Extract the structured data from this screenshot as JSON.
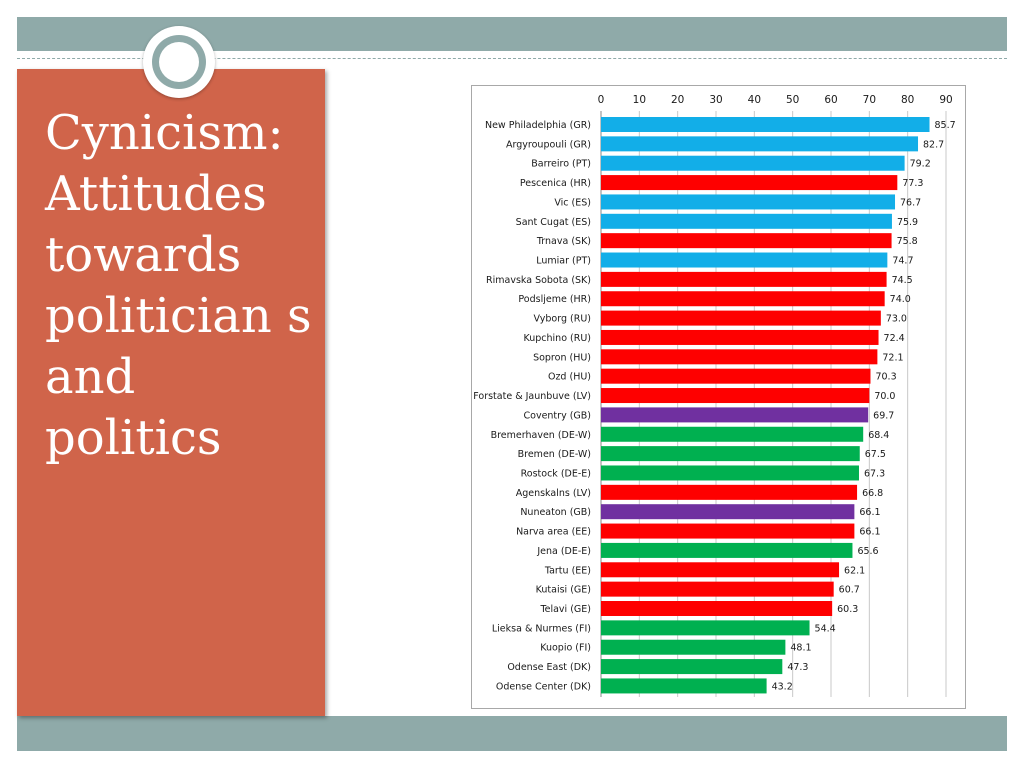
{
  "slide": {
    "title": "Cynicism: Attitudes towards politician s and politics"
  },
  "colors": {
    "band": "#8faaa9",
    "title_panel": "#d0644a",
    "bar_blue": "#12aee8",
    "bar_red": "#fe0000",
    "bar_purple": "#7030a0",
    "bar_green": "#00b050"
  },
  "chart_data": {
    "type": "bar",
    "orientation": "horizontal",
    "title": "",
    "xlabel": "",
    "ylabel": "",
    "xlim": [
      0,
      90
    ],
    "xticks": [
      0,
      10,
      20,
      30,
      40,
      50,
      60,
      70,
      80,
      90
    ],
    "grid": true,
    "legend": "none",
    "categories": [
      "New Philadelphia (GR)",
      "Argyroupouli (GR)",
      "Barreiro (PT)",
      "Pescenica (HR)",
      "Vic (ES)",
      "Sant Cugat (ES)",
      "Trnava (SK)",
      "Lumiar (PT)",
      "Rimavska Sobota (SK)",
      "Podsljeme (HR)",
      "Vyborg (RU)",
      "Kupchino (RU)",
      "Sopron (HU)",
      "Ozd (HU)",
      "Forstate & Jaunbuve (LV)",
      "Coventry (GB)",
      "Bremerhaven (DE-W)",
      "Bremen (DE-W)",
      "Rostock (DE-E)",
      "Agenskalns (LV)",
      "Nuneaton (GB)",
      "Narva area (EE)",
      "Jena (DE-E)",
      "Tartu (EE)",
      "Kutaisi (GE)",
      "Telavi (GE)",
      "Lieksa & Nurmes (FI)",
      "Kuopio (FI)",
      "Odense East (DK)",
      "Odense Center (DK)"
    ],
    "values": [
      85.7,
      82.7,
      79.2,
      77.3,
      76.7,
      75.9,
      75.8,
      74.7,
      74.5,
      74.0,
      73.0,
      72.4,
      72.1,
      70.3,
      70.0,
      69.7,
      68.4,
      67.5,
      67.3,
      66.8,
      66.1,
      66.1,
      65.6,
      62.1,
      60.7,
      60.3,
      54.4,
      48.1,
      47.3,
      43.2
    ],
    "value_labels": [
      "85.7",
      "82.7",
      "79.2",
      "77.3",
      "76.7",
      "75.9",
      "75.8",
      "74.7",
      "74.5",
      "74.0",
      "73.0",
      "72.4",
      "72.1",
      "70.3",
      "70.0",
      "69.7",
      "68.4",
      "67.5",
      "67.3",
      "66.8",
      "66.1",
      "66.1",
      "65.6",
      "62.1",
      "60.7",
      "60.3",
      "54.4",
      "48.1",
      "47.3",
      "43.2"
    ],
    "bar_colors": [
      "blue",
      "blue",
      "blue",
      "red",
      "blue",
      "blue",
      "red",
      "blue",
      "red",
      "red",
      "red",
      "red",
      "red",
      "red",
      "red",
      "purple",
      "green",
      "green",
      "green",
      "red",
      "purple",
      "red",
      "green",
      "red",
      "red",
      "red",
      "green",
      "green",
      "green",
      "green"
    ]
  }
}
